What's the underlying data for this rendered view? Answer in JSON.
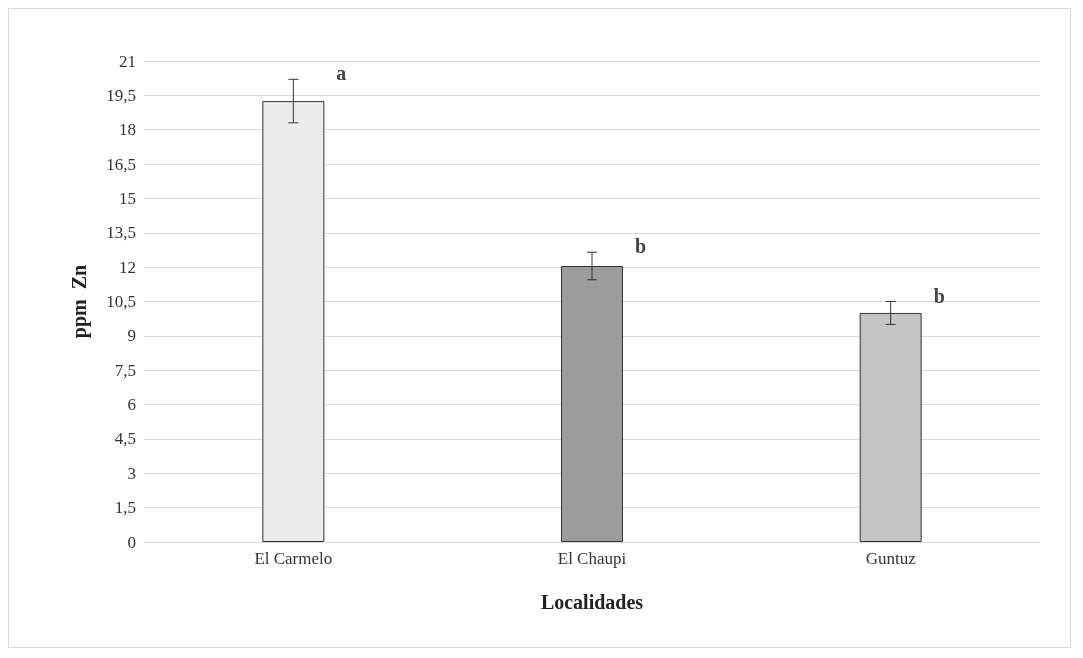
{
  "chart_data": {
    "type": "bar",
    "xlabel": "Localidades",
    "ylabel": "ppm  Zn",
    "categories": [
      "El Carmelo",
      "El Chaupi",
      "Guntuz"
    ],
    "values": [
      19.25,
      12.05,
      10.0
    ],
    "errors": [
      0.95,
      0.6,
      0.5
    ],
    "colors": [
      "#ececec",
      "#9c9c9c",
      "#c4c4c4"
    ],
    "ylim": [
      0,
      21
    ],
    "yticks": [
      0,
      {
        "value": 1.5,
        "label": "1,5"
      },
      3,
      {
        "value": 4.5,
        "label": "4,5"
      },
      6,
      {
        "value": 7.5,
        "label": "7,5"
      },
      9,
      {
        "value": 10.5,
        "label": "10,5"
      },
      12,
      {
        "value": 13.5,
        "label": "13,5"
      },
      15,
      {
        "value": 16.5,
        "label": "16,5"
      },
      18,
      {
        "value": 19.5,
        "label": "19,5"
      },
      21
    ],
    "grid": "y",
    "annotations": [
      {
        "text": "a",
        "x": "El Carmelo",
        "y": 20.2
      },
      {
        "text": "b",
        "x": "El Chaupi",
        "y": 12.65
      },
      {
        "text": "b",
        "x": "Guntuz",
        "y": 10.5
      }
    ]
  }
}
